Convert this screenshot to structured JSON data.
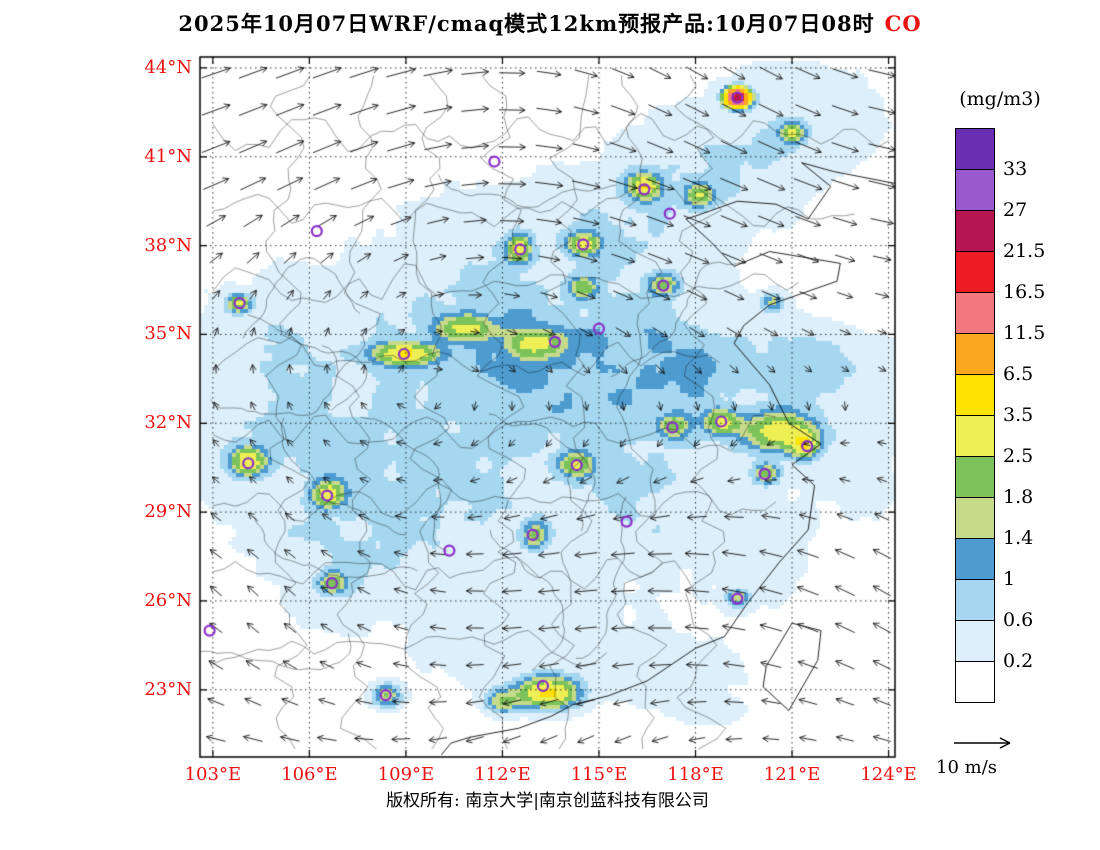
{
  "theme": {
    "accent_red": "#EE1111",
    "frame_color": "#000000",
    "marker_purple": "#8B2FC9"
  },
  "title": {
    "text": "2025年10月07日WRF/cmaq模式12km预报产品:10月07日08时",
    "species": "CO"
  },
  "footer": {
    "text": "版权所有: 南京大学|南京创蓝科技有限公司"
  },
  "colorbar": {
    "title": "(mg/m3)",
    "labels_top_to_bottom": [
      "33",
      "27",
      "21.5",
      "16.5",
      "11.5",
      "6.5",
      "3.5",
      "2.5",
      "1.8",
      "1.4",
      "1",
      "0.6",
      "0.2"
    ]
  },
  "axes": {
    "lat_labels": [
      "44°N",
      "41°N",
      "38°N",
      "35°N",
      "32°N",
      "29°N",
      "26°N",
      "23°N"
    ],
    "lon_labels": [
      "103°E",
      "106°E",
      "109°E",
      "112°E",
      "115°E",
      "118°E",
      "121°E",
      "124°E"
    ],
    "label_color": "#EE1111"
  },
  "wind_legend": {
    "label": "10 m/s"
  },
  "chart_data": {
    "type": "heatmap",
    "title": "2025年10月07日WRF/cmaq模式12km预报产品:10月07日08时 CO",
    "species": "CO",
    "units": "mg/m3",
    "model": "WRF/CMAQ 12km",
    "lon_range": [
      102.6,
      124.2
    ],
    "lat_range": [
      20.73,
      44.37
    ],
    "lon_ticks": [
      103,
      106,
      109,
      112,
      115,
      118,
      121,
      124
    ],
    "lat_ticks": [
      23,
      26,
      29,
      32,
      35,
      38,
      41,
      44
    ],
    "levels": [
      0.2,
      0.6,
      1,
      1.4,
      1.8,
      2.5,
      3.5,
      6.5,
      11.5,
      16.5,
      21.5,
      27,
      33
    ],
    "colors": [
      "#FFFFFF",
      "#DDEFFA",
      "#A5D7F0",
      "#4E9BD0",
      "#C5DB8B",
      "#7BC35A",
      "#EDEF55",
      "#FFE200",
      "#FBA71E",
      "#F4797F",
      "#ED1C24",
      "#B5164F",
      "#9B59D0",
      "#6B2FB3"
    ],
    "wind_ref_speed": 10,
    "base_blobs": [
      [
        112.5,
        32.5,
        8.5,
        6.5,
        0.38
      ],
      [
        113.5,
        34.5,
        4.5,
        2.2,
        0.52
      ],
      [
        117.5,
        33.5,
        3.5,
        2.0,
        0.45
      ],
      [
        121.8,
        33.8,
        2.6,
        1.4,
        0.58
      ],
      [
        109.5,
        30.5,
        3.0,
        2.5,
        0.45
      ],
      [
        104.8,
        31.5,
        2.2,
        2.0,
        0.5
      ],
      [
        107.0,
        27.5,
        3.0,
        2.2,
        0.4
      ],
      [
        113.0,
        24.5,
        3.5,
        2.0,
        0.35
      ],
      [
        118.5,
        40.5,
        3.0,
        1.8,
        0.5
      ],
      [
        121.0,
        42.5,
        3.0,
        1.8,
        0.45
      ],
      [
        115.5,
        38.5,
        2.5,
        2.0,
        0.45
      ],
      [
        110.5,
        37.0,
        2.0,
        2.5,
        0.4
      ],
      [
        105.0,
        35.0,
        2.5,
        2.0,
        0.35
      ],
      [
        116.0,
        29.5,
        2.5,
        2.0,
        0.4
      ],
      [
        120.0,
        27.5,
        1.5,
        2.0,
        0.3
      ],
      [
        123.0,
        30.5,
        2.0,
        2.0,
        0.25
      ],
      [
        118.0,
        23.0,
        2.5,
        1.5,
        0.3
      ]
    ],
    "hotspots": [
      [
        116.4,
        40.0,
        3.0,
        0.45,
        0.4
      ],
      [
        118.1,
        39.7,
        2.2,
        0.4,
        0.35
      ],
      [
        119.3,
        43.0,
        25,
        0.3,
        0.25
      ],
      [
        121.0,
        41.8,
        2.5,
        0.35,
        0.3
      ],
      [
        114.5,
        38.05,
        2.4,
        0.45,
        0.35
      ],
      [
        112.5,
        37.9,
        2.6,
        0.35,
        0.45
      ],
      [
        109.0,
        34.35,
        3.2,
        0.9,
        0.35
      ],
      [
        110.8,
        35.2,
        2.2,
        0.8,
        0.4
      ],
      [
        113.0,
        34.7,
        2.0,
        0.7,
        0.4
      ],
      [
        103.8,
        36.05,
        2.5,
        0.35,
        0.3
      ],
      [
        104.1,
        30.7,
        3.0,
        0.5,
        0.45
      ],
      [
        106.6,
        29.6,
        2.6,
        0.45,
        0.4
      ],
      [
        106.7,
        26.6,
        2.0,
        0.4,
        0.35
      ],
      [
        114.3,
        30.6,
        2.2,
        0.5,
        0.4
      ],
      [
        113.0,
        28.2,
        1.8,
        0.4,
        0.45
      ],
      [
        120.6,
        31.7,
        2.8,
        1.1,
        0.6
      ],
      [
        118.8,
        32.05,
        2.4,
        0.5,
        0.4
      ],
      [
        120.2,
        30.3,
        1.8,
        0.4,
        0.35
      ],
      [
        121.4,
        31.25,
        2.6,
        0.4,
        0.4
      ],
      [
        117.3,
        31.9,
        1.7,
        0.45,
        0.4
      ],
      [
        113.4,
        22.9,
        3.5,
        0.9,
        0.5
      ],
      [
        112.0,
        22.6,
        1.6,
        0.5,
        0.4
      ],
      [
        119.3,
        26.1,
        1.5,
        0.35,
        0.3
      ],
      [
        108.4,
        22.8,
        1.8,
        0.45,
        0.4
      ],
      [
        114.5,
        36.6,
        1.8,
        0.4,
        0.35
      ],
      [
        117.0,
        36.7,
        1.8,
        0.45,
        0.35
      ],
      [
        120.4,
        36.1,
        1.4,
        0.35,
        0.3
      ]
    ],
    "city_markers": [
      [
        102.9,
        25.0
      ],
      [
        106.7,
        26.6
      ],
      [
        104.1,
        30.65
      ],
      [
        106.55,
        29.56
      ],
      [
        108.94,
        34.34
      ],
      [
        103.83,
        36.06
      ],
      [
        106.23,
        38.49
      ],
      [
        111.75,
        40.84
      ],
      [
        112.55,
        37.87
      ],
      [
        114.51,
        38.04
      ],
      [
        116.41,
        39.9
      ],
      [
        117.2,
        39.08
      ],
      [
        117.0,
        36.65
      ],
      [
        113.63,
        34.75
      ],
      [
        114.31,
        30.59
      ],
      [
        112.94,
        28.23
      ],
      [
        115.86,
        28.68
      ],
      [
        117.28,
        31.86
      ],
      [
        118.8,
        32.06
      ],
      [
        121.47,
        31.23
      ],
      [
        120.15,
        30.29
      ],
      [
        119.3,
        26.08
      ],
      [
        113.26,
        23.13
      ],
      [
        108.37,
        22.82
      ],
      [
        119.3,
        43.0
      ],
      [
        110.35,
        27.7
      ],
      [
        115.0,
        35.2
      ]
    ],
    "coastline": [
      [
        124.2,
        40.1
      ],
      [
        122.3,
        40.5
      ],
      [
        121.3,
        40.8
      ],
      [
        122.2,
        40.0
      ],
      [
        121.5,
        38.9
      ],
      [
        120.5,
        39.4
      ],
      [
        119.3,
        39.5
      ],
      [
        118.0,
        39.0
      ],
      [
        117.7,
        38.9
      ],
      [
        118.5,
        38.1
      ],
      [
        119.2,
        37.3
      ],
      [
        120.3,
        37.8
      ],
      [
        122.5,
        37.4
      ],
      [
        122.4,
        36.8
      ],
      [
        120.3,
        36.0
      ],
      [
        119.5,
        35.3
      ],
      [
        119.2,
        34.7
      ],
      [
        120.3,
        33.3
      ],
      [
        120.9,
        32.0
      ],
      [
        121.9,
        31.3
      ],
      [
        121.0,
        30.6
      ],
      [
        121.7,
        29.9
      ],
      [
        121.5,
        28.4
      ],
      [
        120.6,
        27.3
      ],
      [
        119.6,
        25.9
      ],
      [
        118.9,
        24.8
      ],
      [
        118.0,
        24.4
      ],
      [
        116.5,
        23.3
      ],
      [
        115.3,
        22.8
      ],
      [
        114.2,
        22.5
      ],
      [
        113.5,
        22.1
      ],
      [
        112.5,
        21.7
      ],
      [
        111.0,
        21.4
      ],
      [
        110.4,
        21.2
      ],
      [
        110.1,
        20.8
      ]
    ],
    "islands": [
      [
        [
          121.0,
          25.25
        ],
        [
          121.9,
          25.0
        ],
        [
          121.8,
          24.0
        ],
        [
          120.9,
          22.3
        ],
        [
          120.1,
          23.1
        ],
        [
          120.2,
          23.8
        ],
        [
          121.0,
          25.25
        ]
      ]
    ]
  }
}
